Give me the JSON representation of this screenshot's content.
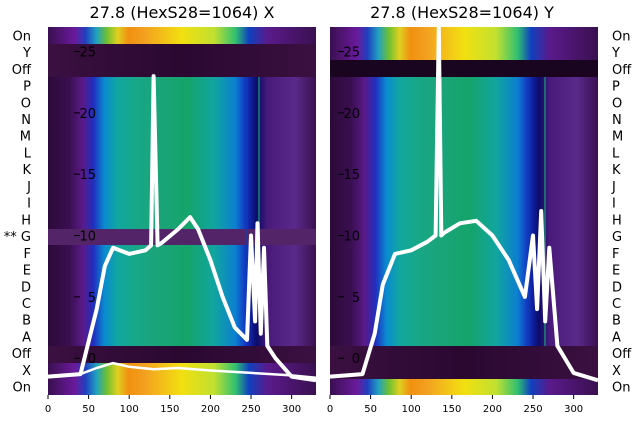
{
  "chart_data": [
    {
      "type": "heatmap",
      "title": "27.8 (HexS28=1064) X",
      "row_labels": [
        "On",
        "Y",
        "Off",
        "P",
        "O",
        "N",
        "M",
        "L",
        "K",
        "J",
        "I",
        "H",
        "** G",
        "F",
        "E",
        "D",
        "C",
        "B",
        "A",
        "Off",
        "X",
        "On"
      ],
      "xlim": [
        0,
        330
      ],
      "x_ticks": [
        0,
        50,
        100,
        150,
        200,
        250,
        300
      ],
      "y_overlay_ticks": [
        0,
        5,
        10,
        15,
        20,
        25
      ],
      "y_overlay_range": [
        -3,
        27
      ],
      "series": [
        {
          "name": "",
          "x": [
            0,
            40,
            60,
            70,
            80,
            100,
            120,
            127,
            130,
            135,
            140,
            160,
            175,
            185,
            200,
            215,
            230,
            245,
            250,
            255,
            258,
            262,
            266,
            270,
            280,
            300,
            330
          ],
          "y": [
            -1.5,
            -1.3,
            4,
            7.5,
            9,
            8.5,
            8.8,
            9.2,
            23,
            9.2,
            9.4,
            10.5,
            11.5,
            10.5,
            8,
            5,
            2.5,
            1.5,
            10,
            3,
            11,
            2,
            9,
            1,
            0,
            -1.5,
            -1.8
          ]
        },
        {
          "name": "",
          "x": [
            0,
            40,
            60,
            80,
            100,
            130,
            160,
            200,
            250,
            300,
            330
          ],
          "y": [
            -1.5,
            -1.3,
            -0.8,
            -0.4,
            -0.7,
            -0.9,
            -0.8,
            -1.0,
            -1.2,
            -1.4,
            -1.6
          ]
        }
      ]
    },
    {
      "type": "heatmap",
      "title": "27.8 (HexS28=1064) Y",
      "row_labels": [
        "On",
        "Y",
        "Off",
        "P",
        "O",
        "N",
        "M",
        "L",
        "K",
        "J",
        "I",
        "H",
        "G",
        "F",
        "E",
        "D",
        "C",
        "B",
        "A",
        "Off",
        "X",
        "On"
      ],
      "xlim": [
        0,
        330
      ],
      "x_ticks": [
        0,
        50,
        100,
        150,
        200,
        250,
        300
      ],
      "y_overlay_ticks": [
        0,
        5,
        10,
        15,
        20,
        25
      ],
      "y_overlay_range": [
        -3,
        27
      ],
      "series": [
        {
          "name": "",
          "x": [
            0,
            40,
            55,
            65,
            80,
            100,
            120,
            130,
            134,
            137,
            140,
            160,
            180,
            200,
            220,
            240,
            250,
            255,
            260,
            265,
            270,
            280,
            300,
            330
          ],
          "y": [
            -1.5,
            -1.3,
            2,
            6,
            8.5,
            8.8,
            9.5,
            10,
            27,
            10,
            10.2,
            11,
            11.2,
            10,
            8,
            5,
            10,
            4,
            12,
            3,
            9,
            1,
            -1.2,
            -1.8
          ]
        }
      ]
    }
  ],
  "colors": {
    "overlay_line": "#ffffff",
    "dark_band": "#2a0830"
  }
}
